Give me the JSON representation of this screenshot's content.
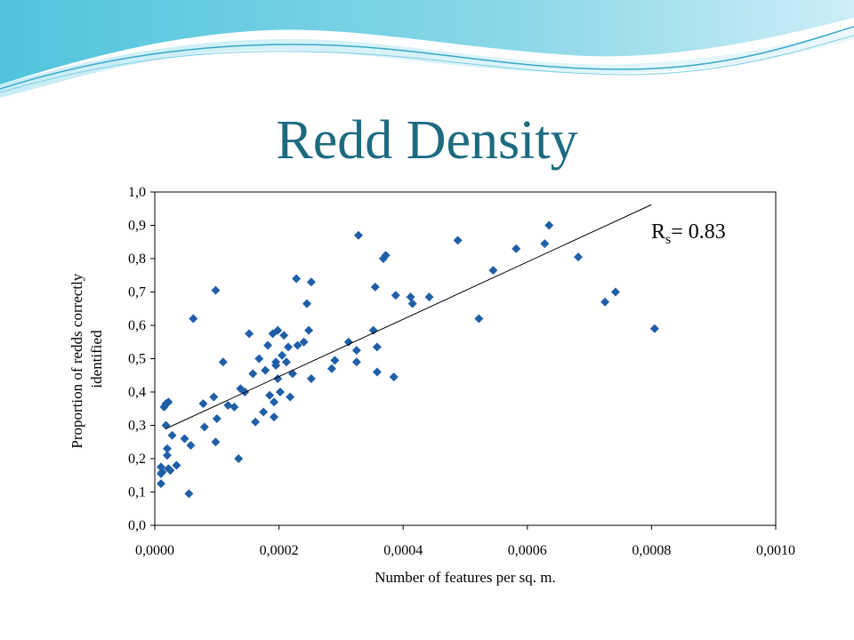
{
  "slide": {
    "title": "Redd Density"
  },
  "chart_data": {
    "type": "scatter",
    "title": "",
    "xlabel": "Number of features per sq. m.",
    "ylabel": "Proportion of redds correctly identified",
    "xlim": [
      0,
      0.001
    ],
    "ylim": [
      0,
      1
    ],
    "x_ticks": [
      "0,0000",
      "0,0002",
      "0,0004",
      "0,0006",
      "0,0008",
      "0,0010"
    ],
    "y_ticks": [
      "0,0",
      "0,1",
      "0,2",
      "0,3",
      "0,4",
      "0,5",
      "0,6",
      "0,7",
      "0,8",
      "0,9",
      "1,0"
    ],
    "grid": false,
    "marker": "diamond",
    "marker_color": "#1f5fa8",
    "annotation": {
      "main": "R",
      "subscript": "s",
      "rest": "= 0.83"
    },
    "trendline": {
      "x": [
        1.8e-05,
        0.0008
      ],
      "y": [
        0.29,
        0.962
      ]
    },
    "x": [
      1e-05,
      1e-05,
      1e-05,
      1.2e-05,
      1.5e-05,
      1.8e-05,
      1.8e-05,
      2e-05,
      2e-05,
      2.2e-05,
      2.2e-05,
      2.5e-05,
      2.8e-05,
      3.5e-05,
      4.8e-05,
      5.5e-05,
      5.8e-05,
      6.2e-05,
      7.8e-05,
      8e-05,
      9.5e-05,
      9.8e-05,
      9.8e-05,
      0.0001,
      0.00011,
      0.000118,
      0.000128,
      0.000135,
      0.000138,
      0.000145,
      0.000152,
      0.000158,
      0.000162,
      0.000168,
      0.000175,
      0.000178,
      0.000182,
      0.000185,
      0.00019,
      0.000192,
      0.000192,
      0.000195,
      0.000195,
      0.000198,
      0.000198,
      0.000202,
      0.000205,
      0.000208,
      0.000212,
      0.000215,
      0.000218,
      0.000222,
      0.000228,
      0.00023,
      0.00024,
      0.000245,
      0.000248,
      0.000252,
      0.000252,
      0.000285,
      0.00029,
      0.000312,
      0.000325,
      0.000325,
      0.000328,
      0.000352,
      0.000355,
      0.000358,
      0.000358,
      0.000368,
      0.000372,
      0.000385,
      0.000388,
      0.000412,
      0.000415,
      0.000442,
      0.000488,
      0.000522,
      0.000545,
      0.000582,
      0.000628,
      0.000635,
      0.000682,
      0.000725,
      0.000742,
      0.000805
    ],
    "y": [
      0.125,
      0.155,
      0.175,
      0.16,
      0.355,
      0.3,
      0.365,
      0.23,
      0.21,
      0.17,
      0.37,
      0.165,
      0.27,
      0.18,
      0.26,
      0.095,
      0.24,
      0.62,
      0.365,
      0.295,
      0.385,
      0.705,
      0.25,
      0.32,
      0.49,
      0.36,
      0.355,
      0.2,
      0.41,
      0.4,
      0.575,
      0.455,
      0.31,
      0.5,
      0.34,
      0.465,
      0.54,
      0.39,
      0.575,
      0.37,
      0.325,
      0.48,
      0.49,
      0.585,
      0.44,
      0.4,
      0.51,
      0.57,
      0.49,
      0.535,
      0.385,
      0.455,
      0.74,
      0.54,
      0.55,
      0.665,
      0.585,
      0.73,
      0.44,
      0.47,
      0.495,
      0.55,
      0.525,
      0.49,
      0.87,
      0.585,
      0.715,
      0.535,
      0.46,
      0.8,
      0.81,
      0.445,
      0.69,
      0.685,
      0.665,
      0.685,
      0.855,
      0.62,
      0.765,
      0.83,
      0.845,
      0.9,
      0.805,
      0.67,
      0.7,
      0.59
    ]
  }
}
